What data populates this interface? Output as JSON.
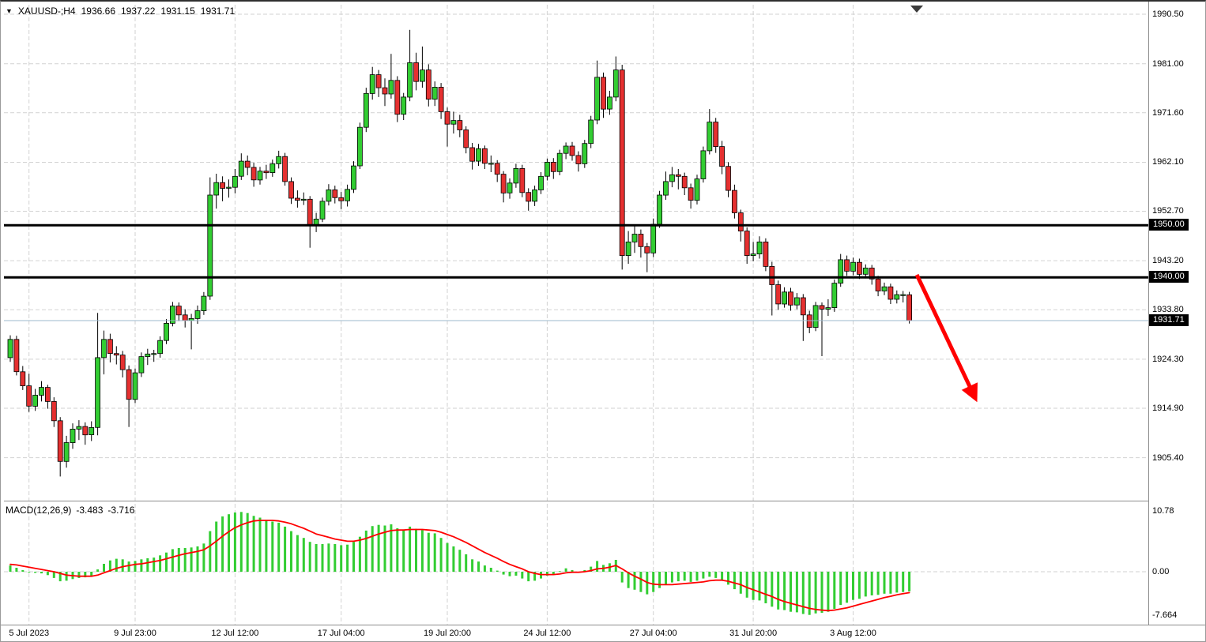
{
  "header": {
    "symbol_period": "XAUUSD-;H4",
    "open": "1936.66",
    "high": "1937.22",
    "low": "1931.15",
    "close": "1931.71",
    "dropdown_icon": "symbol-legend-triangle"
  },
  "indicator": {
    "label": "MACD(12,26,9)",
    "value_main": "-3.483",
    "value_signal": "-3.716"
  },
  "chart_data": {
    "type": "candlestick",
    "symbol": "XAUUSD-",
    "timeframe": "H4",
    "title": "XAUUSD- H4 with MACD(12,26,9)",
    "ylim": [
      1898,
      1992
    ],
    "grid": "dashed",
    "colors": {
      "bull": "#32cd32",
      "bear": "#e53030",
      "wick": "#000000",
      "histogram": "#32cd32",
      "signal": "#ff0000",
      "level": "#000000",
      "arrow": "#ff0000",
      "current_price_line": "#9db8cc",
      "grid": "#d2d2d2"
    },
    "price_ticks": [
      {
        "value": 1990.5,
        "label": "1990.50"
      },
      {
        "value": 1981.0,
        "label": "1981.00"
      },
      {
        "value": 1971.6,
        "label": "1971.60"
      },
      {
        "value": 1962.1,
        "label": "1962.10"
      },
      {
        "value": 1952.7,
        "label": "1952.70"
      },
      {
        "value": 1943.2,
        "label": "1943.20"
      },
      {
        "value": 1933.8,
        "label": "1933.80"
      },
      {
        "value": 1924.3,
        "label": "1924.30"
      },
      {
        "value": 1914.9,
        "label": "1914.90"
      },
      {
        "value": 1905.4,
        "label": "1905.40"
      }
    ],
    "macd_ticks": [
      {
        "value": 10.78,
        "label": "10.78"
      },
      {
        "value": 0,
        "label": "0.00"
      },
      {
        "value": -7.664,
        "label": "-7.664"
      }
    ],
    "levels": [
      1950.0,
      1940.0
    ],
    "current_price": 1931.71,
    "level_badges": [
      {
        "value": 1950.0,
        "label": "1950.00"
      },
      {
        "value": 1940.0,
        "label": "1940.00"
      },
      {
        "value": 1931.71,
        "label": "1931.71"
      }
    ],
    "time_labels": [
      {
        "text": "5 Jul 2023",
        "bar": 3
      },
      {
        "text": "9 Jul 23:00",
        "bar": 20
      },
      {
        "text": "12 Jul 12:00",
        "bar": 36
      },
      {
        "text": "17 Jul 04:00",
        "bar": 53
      },
      {
        "text": "19 Jul 20:00",
        "bar": 70
      },
      {
        "text": "24 Jul 12:00",
        "bar": 86
      },
      {
        "text": "27 Jul 04:00",
        "bar": 103
      },
      {
        "text": "31 Jul 20:00",
        "bar": 119
      },
      {
        "text": "3 Aug 12:00",
        "bar": 135
      }
    ],
    "arrow": {
      "from_bar": 145.2,
      "from_price": 1940.5,
      "to_bar": 154.3,
      "to_price": 1917.5
    },
    "candles": [
      [
        1924.6,
        1928.9,
        1923.8,
        1928.1
      ],
      [
        1928.1,
        1928.8,
        1921.2,
        1921.9
      ],
      [
        1921.9,
        1923.0,
        1918.4,
        1919.2
      ],
      [
        1919.2,
        1921.5,
        1914.2,
        1915.3
      ],
      [
        1915.3,
        1918.6,
        1914.4,
        1917.4
      ],
      [
        1917.4,
        1920.1,
        1916.2,
        1918.9
      ],
      [
        1918.9,
        1919.4,
        1914.8,
        1916.2
      ],
      [
        1916.2,
        1917.0,
        1911.3,
        1912.5
      ],
      [
        1912.5,
        1913.2,
        1901.8,
        1904.7
      ],
      [
        1904.7,
        1909.6,
        1903.5,
        1908.3
      ],
      [
        1908.3,
        1912.0,
        1907.1,
        1910.9
      ],
      [
        1910.9,
        1912.6,
        1908.8,
        1911.4
      ],
      [
        1911.4,
        1912.2,
        1907.9,
        1909.8
      ],
      [
        1909.8,
        1912.4,
        1908.6,
        1911.2
      ],
      [
        1911.2,
        1933.2,
        1909.7,
        1924.6
      ],
      [
        1924.6,
        1929.8,
        1921.4,
        1928.1
      ],
      [
        1928.1,
        1929.2,
        1923.7,
        1925.4
      ],
      [
        1925.4,
        1926.8,
        1923.3,
        1925.1
      ],
      [
        1925.1,
        1925.9,
        1920.8,
        1922.3
      ],
      [
        1922.3,
        1923.1,
        1911.3,
        1916.6
      ],
      [
        1916.6,
        1922.5,
        1915.9,
        1921.7
      ],
      [
        1921.7,
        1925.6,
        1920.9,
        1924.8
      ],
      [
        1924.8,
        1926.3,
        1923.2,
        1925.3
      ],
      [
        1925.3,
        1926.1,
        1923.8,
        1925.4
      ],
      [
        1925.4,
        1928.7,
        1924.6,
        1927.9
      ],
      [
        1927.9,
        1932.0,
        1927.2,
        1931.2
      ],
      [
        1931.2,
        1935.3,
        1930.6,
        1934.5
      ],
      [
        1934.5,
        1935.2,
        1931.6,
        1932.8
      ],
      [
        1932.8,
        1933.9,
        1930.4,
        1931.7
      ],
      [
        1931.7,
        1933.0,
        1926.2,
        1932.1
      ],
      [
        1932.1,
        1934.6,
        1931.1,
        1933.6
      ],
      [
        1933.6,
        1937.2,
        1932.8,
        1936.4
      ],
      [
        1936.4,
        1959.2,
        1935.7,
        1955.8
      ],
      [
        1955.8,
        1959.9,
        1953.2,
        1958.2
      ],
      [
        1958.2,
        1959.4,
        1954.6,
        1957.1
      ],
      [
        1957.1,
        1958.8,
        1955.3,
        1957.3
      ],
      [
        1957.3,
        1960.8,
        1956.1,
        1959.4
      ],
      [
        1959.4,
        1963.8,
        1958.7,
        1962.3
      ],
      [
        1962.3,
        1963.4,
        1959.6,
        1961.1
      ],
      [
        1961.1,
        1962.0,
        1957.4,
        1958.7
      ],
      [
        1958.7,
        1961.2,
        1957.8,
        1960.4
      ],
      [
        1960.4,
        1961.6,
        1958.9,
        1960.1
      ],
      [
        1960.1,
        1962.6,
        1959.3,
        1961.8
      ],
      [
        1961.8,
        1964.3,
        1960.9,
        1963.2
      ],
      [
        1963.2,
        1963.9,
        1957.6,
        1958.4
      ],
      [
        1958.4,
        1959.2,
        1954.1,
        1955.2
      ],
      [
        1955.2,
        1956.7,
        1953.4,
        1954.8
      ],
      [
        1954.8,
        1956.3,
        1953.9,
        1955.0
      ],
      [
        1955.0,
        1955.6,
        1945.7,
        1949.9
      ],
      [
        1949.9,
        1952.4,
        1948.7,
        1951.2
      ],
      [
        1951.2,
        1955.3,
        1950.6,
        1954.6
      ],
      [
        1954.6,
        1957.9,
        1953.8,
        1956.8
      ],
      [
        1956.8,
        1957.6,
        1954.2,
        1955.3
      ],
      [
        1955.3,
        1956.4,
        1953.1,
        1954.7
      ],
      [
        1954.7,
        1957.8,
        1953.6,
        1956.9
      ],
      [
        1956.9,
        1962.3,
        1956.2,
        1961.4
      ],
      [
        1961.4,
        1969.7,
        1960.8,
        1968.8
      ],
      [
        1968.8,
        1976.4,
        1967.9,
        1975.3
      ],
      [
        1975.3,
        1980.4,
        1974.1,
        1978.9
      ],
      [
        1978.9,
        1979.8,
        1974.6,
        1976.4
      ],
      [
        1976.4,
        1978.2,
        1972.9,
        1975.2
      ],
      [
        1975.2,
        1982.9,
        1974.3,
        1977.8
      ],
      [
        1977.8,
        1978.6,
        1969.8,
        1971.3
      ],
      [
        1971.3,
        1975.4,
        1970.2,
        1974.6
      ],
      [
        1974.6,
        1987.5,
        1973.8,
        1981.2
      ],
      [
        1981.2,
        1983.1,
        1975.9,
        1977.6
      ],
      [
        1977.6,
        1984.3,
        1976.4,
        1979.8
      ],
      [
        1979.8,
        1980.9,
        1972.8,
        1974.2
      ],
      [
        1974.2,
        1977.6,
        1972.9,
        1976.5
      ],
      [
        1976.5,
        1977.3,
        1970.4,
        1971.8
      ],
      [
        1971.8,
        1972.6,
        1965.1,
        1969.4
      ],
      [
        1969.4,
        1971.8,
        1967.6,
        1970.1
      ],
      [
        1970.1,
        1971.2,
        1966.9,
        1968.3
      ],
      [
        1968.3,
        1969.0,
        1963.8,
        1964.9
      ],
      [
        1964.9,
        1965.8,
        1960.7,
        1962.3
      ],
      [
        1962.3,
        1965.6,
        1961.4,
        1964.7
      ],
      [
        1964.7,
        1965.3,
        1960.8,
        1961.9
      ],
      [
        1961.9,
        1963.4,
        1960.2,
        1961.9
      ],
      [
        1961.9,
        1962.5,
        1958.3,
        1959.8
      ],
      [
        1959.8,
        1960.4,
        1954.4,
        1956.2
      ],
      [
        1956.2,
        1959.0,
        1955.1,
        1958.1
      ],
      [
        1958.1,
        1961.8,
        1957.2,
        1960.9
      ],
      [
        1960.9,
        1961.6,
        1955.4,
        1956.3
      ],
      [
        1956.3,
        1957.1,
        1952.8,
        1954.6
      ],
      [
        1954.6,
        1957.6,
        1953.7,
        1956.8
      ],
      [
        1956.8,
        1960.2,
        1956.0,
        1959.4
      ],
      [
        1959.4,
        1962.8,
        1958.6,
        1962.1
      ],
      [
        1962.1,
        1962.9,
        1958.9,
        1960.3
      ],
      [
        1960.3,
        1964.5,
        1959.6,
        1963.8
      ],
      [
        1963.8,
        1965.9,
        1962.7,
        1965.2
      ],
      [
        1965.2,
        1966.0,
        1962.4,
        1963.4
      ],
      [
        1963.4,
        1964.2,
        1960.3,
        1961.8
      ],
      [
        1961.8,
        1966.4,
        1961.0,
        1965.7
      ],
      [
        1965.7,
        1971.0,
        1964.8,
        1970.2
      ],
      [
        1970.2,
        1981.6,
        1969.4,
        1978.4
      ],
      [
        1978.4,
        1979.3,
        1970.6,
        1972.3
      ],
      [
        1972.3,
        1975.8,
        1971.2,
        1974.6
      ],
      [
        1974.6,
        1982.4,
        1973.8,
        1979.8
      ],
      [
        1979.8,
        1980.8,
        1941.5,
        1944.2
      ],
      [
        1944.2,
        1948.9,
        1942.6,
        1946.8
      ],
      [
        1946.8,
        1950.1,
        1944.7,
        1948.3
      ],
      [
        1948.3,
        1949.2,
        1943.8,
        1945.9
      ],
      [
        1945.9,
        1946.6,
        1941.0,
        1944.7
      ],
      [
        1944.7,
        1951.3,
        1943.9,
        1950.2
      ],
      [
        1950.2,
        1956.6,
        1949.5,
        1955.8
      ],
      [
        1955.8,
        1960.3,
        1954.9,
        1958.4
      ],
      [
        1958.4,
        1961.2,
        1957.3,
        1959.7
      ],
      [
        1959.7,
        1960.8,
        1956.9,
        1959.4
      ],
      [
        1959.4,
        1960.1,
        1955.8,
        1957.2
      ],
      [
        1957.2,
        1958.0,
        1953.2,
        1954.8
      ],
      [
        1954.8,
        1959.7,
        1954.0,
        1958.9
      ],
      [
        1958.9,
        1965.1,
        1958.2,
        1964.3
      ],
      [
        1964.3,
        1972.3,
        1963.6,
        1969.8
      ],
      [
        1969.8,
        1970.6,
        1963.9,
        1965.1
      ],
      [
        1965.1,
        1966.2,
        1959.8,
        1961.3
      ],
      [
        1961.3,
        1962.1,
        1955.4,
        1956.7
      ],
      [
        1956.7,
        1957.8,
        1951.3,
        1952.4
      ],
      [
        1952.4,
        1953.0,
        1946.9,
        1948.9
      ],
      [
        1948.9,
        1949.6,
        1942.6,
        1944.2
      ],
      [
        1944.2,
        1946.8,
        1943.1,
        1944.5
      ],
      [
        1944.5,
        1947.9,
        1943.6,
        1946.8
      ],
      [
        1946.8,
        1947.5,
        1941.2,
        1942.1
      ],
      [
        1942.1,
        1943.0,
        1932.7,
        1938.6
      ],
      [
        1938.6,
        1939.4,
        1933.8,
        1934.9
      ],
      [
        1934.9,
        1938.1,
        1934.2,
        1937.2
      ],
      [
        1937.2,
        1938.0,
        1933.6,
        1934.7
      ],
      [
        1934.7,
        1937.0,
        1933.9,
        1936.1
      ],
      [
        1936.1,
        1936.8,
        1927.8,
        1932.8
      ],
      [
        1932.8,
        1933.6,
        1929.3,
        1930.4
      ],
      [
        1930.4,
        1935.3,
        1929.7,
        1934.6
      ],
      [
        1934.6,
        1935.2,
        1924.9,
        1933.9
      ],
      [
        1933.9,
        1935.8,
        1932.6,
        1934.2
      ],
      [
        1934.2,
        1939.6,
        1933.4,
        1938.9
      ],
      [
        1938.9,
        1944.5,
        1938.2,
        1943.4
      ],
      [
        1943.4,
        1944.2,
        1940.3,
        1941.2
      ],
      [
        1941.2,
        1943.8,
        1940.4,
        1942.9
      ],
      [
        1942.9,
        1943.6,
        1939.7,
        1940.6
      ],
      [
        1940.6,
        1942.5,
        1939.8,
        1941.8
      ],
      [
        1941.8,
        1942.4,
        1938.6,
        1939.7
      ],
      [
        1939.7,
        1940.3,
        1936.4,
        1937.4
      ],
      [
        1937.4,
        1939.0,
        1936.6,
        1938.2
      ],
      [
        1938.2,
        1938.8,
        1934.9,
        1935.8
      ],
      [
        1935.8,
        1937.5,
        1935.0,
        1936.7
      ],
      [
        1936.7,
        1937.4,
        1935.2,
        1936.7
      ],
      [
        1936.66,
        1937.22,
        1931.15,
        1931.71
      ]
    ],
    "macd": {
      "histogram": [
        1.1,
        0.7,
        0.3,
        0.0,
        -0.2,
        -0.3,
        -0.6,
        -1.1,
        -1.7,
        -1.6,
        -1.3,
        -1.1,
        -1.0,
        -0.7,
        0.4,
        1.4,
        2.0,
        2.3,
        2.2,
        1.8,
        1.9,
        2.2,
        2.4,
        2.5,
        2.9,
        3.4,
        4.0,
        4.2,
        4.2,
        4.3,
        4.5,
        5.0,
        7.2,
        8.9,
        9.8,
        10.2,
        10.5,
        10.6,
        10.4,
        9.9,
        9.6,
        9.2,
        8.9,
        8.7,
        8.0,
        7.2,
        6.5,
        6.0,
        5.3,
        4.9,
        4.9,
        5.0,
        4.9,
        4.7,
        4.8,
        5.3,
        6.2,
        7.3,
        8.1,
        8.3,
        8.2,
        8.4,
        7.7,
        7.5,
        8.0,
        7.6,
        7.4,
        6.9,
        6.8,
        6.0,
        5.1,
        4.5,
        3.9,
        3.1,
        2.2,
        1.8,
        1.1,
        0.7,
        0.2,
        -0.5,
        -0.8,
        -0.7,
        -1.2,
        -1.7,
        -1.6,
        -1.2,
        -0.7,
        -0.5,
        0.1,
        0.6,
        0.3,
        0.0,
        0.3,
        0.9,
        1.9,
        1.2,
        1.5,
        2.1,
        -1.9,
        -2.9,
        -3.2,
        -3.6,
        -4.0,
        -3.6,
        -2.9,
        -2.3,
        -1.9,
        -1.7,
        -1.6,
        -1.8,
        -1.6,
        -1.2,
        -0.9,
        -1.1,
        -1.6,
        -2.3,
        -3.1,
        -3.9,
        -4.6,
        -5.0,
        -5.1,
        -5.6,
        -6.2,
        -6.7,
        -6.8,
        -7.1,
        -7.2,
        -7.5,
        -7.66,
        -7.4,
        -7.3,
        -7.1,
        -6.6,
        -5.9,
        -5.5,
        -5.0,
        -4.8,
        -4.4,
        -4.2,
        -4.1,
        -3.9,
        -3.9,
        -3.7,
        -3.6,
        -3.483
      ],
      "signal": [
        1.3,
        1.2,
        1.0,
        0.8,
        0.6,
        0.4,
        0.2,
        0.0,
        -0.3,
        -0.6,
        -0.7,
        -0.8,
        -0.8,
        -0.8,
        -0.6,
        -0.2,
        0.2,
        0.6,
        0.9,
        1.1,
        1.3,
        1.4,
        1.6,
        1.8,
        2.0,
        2.3,
        2.6,
        2.9,
        3.2,
        3.4,
        3.6,
        3.9,
        4.6,
        5.4,
        6.3,
        7.1,
        7.8,
        8.3,
        8.7,
        9.0,
        9.1,
        9.1,
        9.1,
        9.0,
        8.8,
        8.5,
        8.1,
        7.7,
        7.2,
        6.7,
        6.4,
        6.1,
        5.8,
        5.6,
        5.4,
        5.4,
        5.6,
        5.9,
        6.3,
        6.7,
        7.0,
        7.3,
        7.4,
        7.4,
        7.5,
        7.5,
        7.5,
        7.4,
        7.3,
        7.0,
        6.6,
        6.2,
        5.7,
        5.2,
        4.6,
        4.0,
        3.4,
        2.9,
        2.4,
        1.8,
        1.3,
        0.9,
        0.5,
        0.0,
        -0.3,
        -0.5,
        -0.5,
        -0.5,
        -0.4,
        -0.2,
        -0.1,
        -0.1,
        0.0,
        0.2,
        0.5,
        0.6,
        0.8,
        1.1,
        0.5,
        -0.2,
        -0.8,
        -1.3,
        -1.9,
        -2.2,
        -2.3,
        -2.3,
        -2.3,
        -2.2,
        -2.1,
        -2.0,
        -1.9,
        -1.8,
        -1.6,
        -1.5,
        -1.5,
        -1.7,
        -2.0,
        -2.3,
        -2.8,
        -3.2,
        -3.6,
        -4.0,
        -4.4,
        -4.9,
        -5.3,
        -5.6,
        -5.9,
        -6.2,
        -6.5,
        -6.7,
        -6.8,
        -6.9,
        -6.8,
        -6.6,
        -6.4,
        -6.1,
        -5.8,
        -5.5,
        -5.2,
        -4.9,
        -4.6,
        -4.35,
        -4.1,
        -3.9,
        -3.716
      ]
    }
  }
}
